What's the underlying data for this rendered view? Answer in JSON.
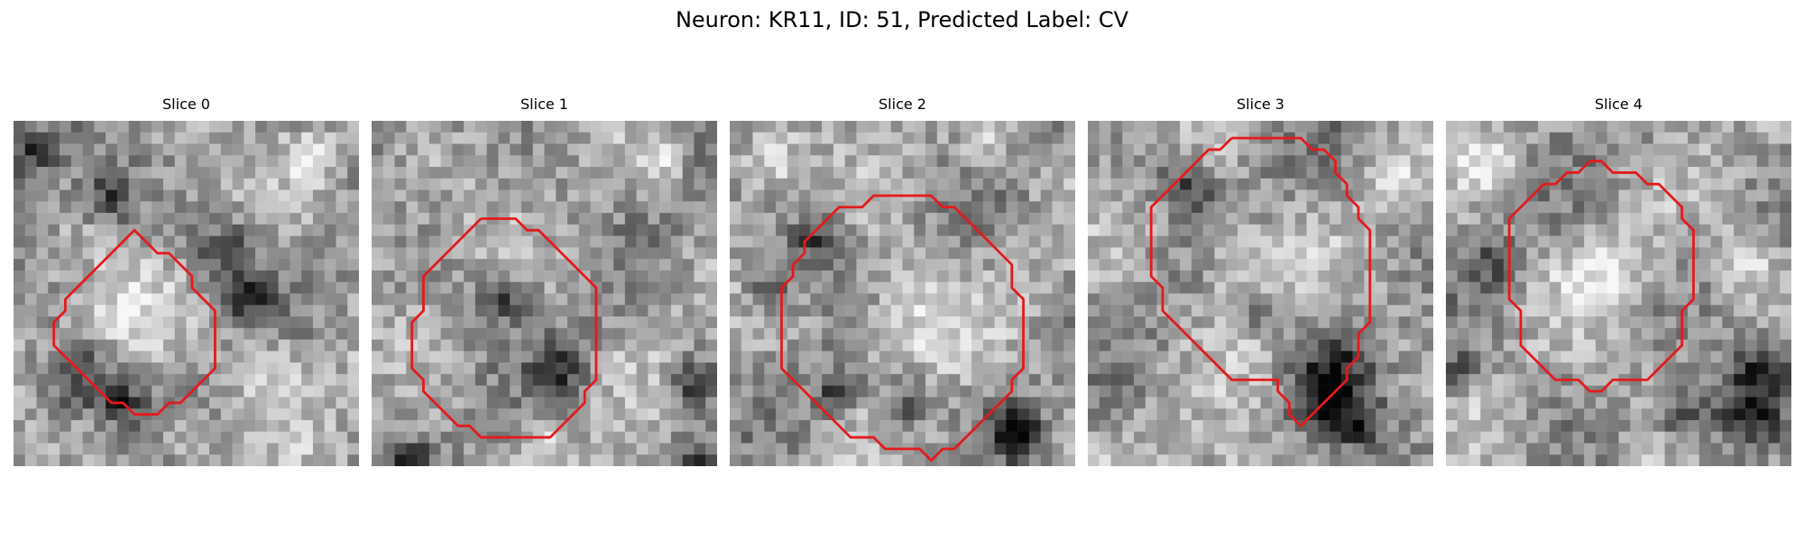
{
  "figure": {
    "title": "Neuron: KR11, ID: 51, Predicted Label: CV"
  },
  "colors": {
    "contour": "#e41a1c",
    "background": "#ffffff"
  },
  "panels": [
    {
      "title": "Slice 0",
      "contour": [
        [
          9.5,
          10.5
        ],
        [
          10.5,
          9.5
        ],
        [
          11.5,
          10.5
        ],
        [
          12.5,
          11.5
        ],
        [
          13.5,
          11.5
        ],
        [
          14.5,
          12.5
        ],
        [
          15.5,
          13.5
        ],
        [
          15.5,
          14.5
        ],
        [
          16.5,
          15.5
        ],
        [
          17.5,
          16.5
        ],
        [
          17.5,
          17.5
        ],
        [
          17.5,
          18.5
        ],
        [
          17.5,
          19.5
        ],
        [
          17.5,
          20.5
        ],
        [
          17.5,
          21.5
        ],
        [
          16.5,
          22.5
        ],
        [
          15.5,
          23.5
        ],
        [
          14.5,
          24.5
        ],
        [
          13.5,
          24.5
        ],
        [
          12.5,
          25.5
        ],
        [
          11.5,
          25.5
        ],
        [
          10.5,
          25.5
        ],
        [
          9.5,
          24.5
        ],
        [
          8.5,
          24.5
        ],
        [
          7.5,
          23.5
        ],
        [
          6.5,
          22.5
        ],
        [
          5.5,
          21.5
        ],
        [
          4.5,
          20.5
        ],
        [
          3.5,
          19.5
        ],
        [
          3.5,
          18.5
        ],
        [
          3.5,
          17.5
        ],
        [
          4.5,
          16.5
        ],
        [
          4.5,
          15.5
        ],
        [
          5.5,
          14.5
        ],
        [
          6.5,
          13.5
        ],
        [
          7.5,
          12.5
        ],
        [
          8.5,
          11.5
        ],
        [
          9.5,
          10.5
        ]
      ],
      "dark_spots": [
        [
          1.5,
          2.5,
          1.6
        ],
        [
          8.5,
          6.5,
          1.8
        ],
        [
          5.5,
          22.5,
          2.2
        ],
        [
          9.5,
          24.5,
          1.4
        ],
        [
          18.5,
          11.5,
          1.7
        ],
        [
          20.5,
          15.5,
          1.5
        ]
      ],
      "light_spots": [
        [
          9.5,
          16.5,
          2.8
        ],
        [
          22.5,
          21.5,
          2.4
        ],
        [
          15.5,
          27.5,
          1.8
        ],
        [
          25.5,
          3.5,
          1.6
        ]
      ]
    },
    {
      "title": "Slice 1",
      "contour": [
        [
          9.5,
          8.5
        ],
        [
          10.5,
          8.5
        ],
        [
          11.5,
          8.5
        ],
        [
          12.5,
          8.5
        ],
        [
          13.5,
          9.5
        ],
        [
          14.5,
          9.5
        ],
        [
          15.5,
          10.5
        ],
        [
          16.5,
          11.5
        ],
        [
          17.5,
          12.5
        ],
        [
          18.5,
          13.5
        ],
        [
          19.5,
          14.5
        ],
        [
          19.5,
          15.5
        ],
        [
          19.5,
          16.5
        ],
        [
          19.5,
          17.5
        ],
        [
          19.5,
          18.5
        ],
        [
          19.5,
          19.5
        ],
        [
          19.5,
          20.5
        ],
        [
          19.5,
          21.5
        ],
        [
          19.5,
          22.5
        ],
        [
          18.5,
          23.5
        ],
        [
          18.5,
          24.5
        ],
        [
          17.5,
          25.5
        ],
        [
          16.5,
          26.5
        ],
        [
          15.5,
          27.5
        ],
        [
          14.5,
          27.5
        ],
        [
          13.5,
          27.5
        ],
        [
          12.5,
          27.5
        ],
        [
          11.5,
          27.5
        ],
        [
          10.5,
          27.5
        ],
        [
          9.5,
          27.5
        ],
        [
          8.5,
          26.5
        ],
        [
          7.5,
          26.5
        ],
        [
          6.5,
          25.5
        ],
        [
          5.5,
          24.5
        ],
        [
          4.5,
          23.5
        ],
        [
          4.5,
          22.5
        ],
        [
          3.5,
          21.5
        ],
        [
          3.5,
          20.5
        ],
        [
          3.5,
          19.5
        ],
        [
          3.5,
          18.5
        ],
        [
          3.5,
          17.5
        ],
        [
          4.5,
          16.5
        ],
        [
          4.5,
          15.5
        ],
        [
          4.5,
          14.5
        ],
        [
          4.5,
          13.5
        ],
        [
          5.5,
          12.5
        ],
        [
          6.5,
          11.5
        ],
        [
          7.5,
          10.5
        ],
        [
          8.5,
          9.5
        ],
        [
          9.5,
          8.5
        ]
      ],
      "dark_spots": [
        [
          11.5,
          15.5,
          1.4
        ],
        [
          16.5,
          21.5,
          1.6
        ],
        [
          27.5,
          22.5,
          1.5
        ],
        [
          28.5,
          29.5,
          1.3
        ],
        [
          3.5,
          29.5,
          1.2
        ]
      ],
      "light_spots": [
        [
          14.5,
          27.5,
          0.8
        ],
        [
          25.5,
          3.5,
          1.2
        ]
      ]
    },
    {
      "title": "Slice 2",
      "contour": [
        [
          13.5,
          6.5
        ],
        [
          14.5,
          6.5
        ],
        [
          15.5,
          6.5
        ],
        [
          16.5,
          6.5
        ],
        [
          17.5,
          6.5
        ],
        [
          18.5,
          7.5
        ],
        [
          19.5,
          7.5
        ],
        [
          20.5,
          8.5
        ],
        [
          21.5,
          9.5
        ],
        [
          22.5,
          10.5
        ],
        [
          23.5,
          11.5
        ],
        [
          24.5,
          12.5
        ],
        [
          24.5,
          13.5
        ],
        [
          24.5,
          14.5
        ],
        [
          25.5,
          15.5
        ],
        [
          25.5,
          16.5
        ],
        [
          25.5,
          17.5
        ],
        [
          25.5,
          18.5
        ],
        [
          25.5,
          19.5
        ],
        [
          25.5,
          20.5
        ],
        [
          25.5,
          21.5
        ],
        [
          24.5,
          22.5
        ],
        [
          24.5,
          23.5
        ],
        [
          23.5,
          24.5
        ],
        [
          22.5,
          25.5
        ],
        [
          21.5,
          26.5
        ],
        [
          20.5,
          27.5
        ],
        [
          19.5,
          28.5
        ],
        [
          18.5,
          28.5
        ],
        [
          17.5,
          29.5
        ],
        [
          16.5,
          28.5
        ],
        [
          15.5,
          28.5
        ],
        [
          14.5,
          28.5
        ],
        [
          13.5,
          28.5
        ],
        [
          12.5,
          27.5
        ],
        [
          11.5,
          27.5
        ],
        [
          10.5,
          27.5
        ],
        [
          9.5,
          26.5
        ],
        [
          8.5,
          25.5
        ],
        [
          7.5,
          24.5
        ],
        [
          6.5,
          23.5
        ],
        [
          5.5,
          22.5
        ],
        [
          4.5,
          21.5
        ],
        [
          4.5,
          20.5
        ],
        [
          4.5,
          19.5
        ],
        [
          4.5,
          18.5
        ],
        [
          4.5,
          17.5
        ],
        [
          4.5,
          16.5
        ],
        [
          4.5,
          15.5
        ],
        [
          4.5,
          14.5
        ],
        [
          5.5,
          13.5
        ],
        [
          5.5,
          12.5
        ],
        [
          6.5,
          11.5
        ],
        [
          6.5,
          10.5
        ],
        [
          7.5,
          9.5
        ],
        [
          8.5,
          8.5
        ],
        [
          9.5,
          7.5
        ],
        [
          10.5,
          7.5
        ],
        [
          11.5,
          7.5
        ],
        [
          12.5,
          6.5
        ],
        [
          13.5,
          6.5
        ]
      ],
      "dark_spots": [
        [
          7.5,
          10.5,
          1.6
        ],
        [
          24.5,
          26.5,
          1.6
        ],
        [
          25.5,
          27.5,
          1.3
        ],
        [
          3.5,
          14.5,
          1.4
        ],
        [
          9.5,
          23.5,
          1.3
        ],
        [
          15.5,
          24.5,
          1.5
        ]
      ],
      "light_spots": [
        [
          15.5,
          16.5,
          3.4
        ],
        [
          3.5,
          3.5,
          1.8
        ],
        [
          22.5,
          2.5,
          1.6
        ]
      ]
    },
    {
      "title": "Slice 3",
      "contour": [
        [
          12.5,
          1.5
        ],
        [
          13.5,
          1.5
        ],
        [
          14.5,
          1.5
        ],
        [
          15.5,
          1.5
        ],
        [
          16.5,
          1.5
        ],
        [
          17.5,
          1.5
        ],
        [
          18.5,
          1.5
        ],
        [
          19.5,
          2.5
        ],
        [
          20.5,
          2.5
        ],
        [
          21.5,
          3.5
        ],
        [
          21.5,
          4.5
        ],
        [
          22.5,
          5.5
        ],
        [
          22.5,
          6.5
        ],
        [
          23.5,
          7.5
        ],
        [
          23.5,
          8.5
        ],
        [
          24.5,
          9.5
        ],
        [
          24.5,
          10.5
        ],
        [
          24.5,
          11.5
        ],
        [
          24.5,
          12.5
        ],
        [
          24.5,
          13.5
        ],
        [
          24.5,
          14.5
        ],
        [
          24.5,
          15.5
        ],
        [
          24.5,
          16.5
        ],
        [
          24.5,
          17.5
        ],
        [
          23.5,
          18.5
        ],
        [
          23.5,
          19.5
        ],
        [
          23.5,
          20.5
        ],
        [
          22.5,
          21.5
        ],
        [
          22.5,
          22.5
        ],
        [
          21.5,
          23.5
        ],
        [
          20.5,
          24.5
        ],
        [
          19.5,
          25.5
        ],
        [
          18.5,
          26.5
        ],
        [
          17.5,
          25.5
        ],
        [
          17.5,
          24.5
        ],
        [
          16.5,
          23.5
        ],
        [
          16.5,
          22.5
        ],
        [
          15.5,
          22.5
        ],
        [
          14.5,
          22.5
        ],
        [
          13.5,
          22.5
        ],
        [
          12.5,
          22.5
        ],
        [
          11.5,
          21.5
        ],
        [
          10.5,
          20.5
        ],
        [
          9.5,
          19.5
        ],
        [
          8.5,
          18.5
        ],
        [
          7.5,
          17.5
        ],
        [
          6.5,
          16.5
        ],
        [
          6.5,
          15.5
        ],
        [
          6.5,
          14.5
        ],
        [
          5.5,
          13.5
        ],
        [
          5.5,
          12.5
        ],
        [
          5.5,
          11.5
        ],
        [
          5.5,
          10.5
        ],
        [
          5.5,
          9.5
        ],
        [
          5.5,
          8.5
        ],
        [
          5.5,
          7.5
        ],
        [
          6.5,
          6.5
        ],
        [
          7.5,
          5.5
        ],
        [
          8.5,
          4.5
        ],
        [
          9.5,
          3.5
        ],
        [
          10.5,
          2.5
        ],
        [
          11.5,
          2.5
        ],
        [
          12.5,
          1.5
        ]
      ],
      "dark_spots": [
        [
          8.5,
          5.5,
          1.6
        ],
        [
          21.5,
          21.5,
          2.4
        ],
        [
          20.5,
          24.5,
          1.8
        ],
        [
          23.5,
          26.5,
          1.5
        ],
        [
          14.5,
          16.5,
          1.1
        ]
      ],
      "light_spots": [
        [
          13.5,
          12.5,
          2.8
        ],
        [
          12.5,
          28.5,
          1.3
        ],
        [
          26.5,
          5.5,
          1.4
        ]
      ]
    },
    {
      "title": "Slice 4",
      "contour": [
        [
          12.5,
          3.5
        ],
        [
          13.5,
          3.5
        ],
        [
          14.5,
          4.5
        ],
        [
          15.5,
          4.5
        ],
        [
          16.5,
          4.5
        ],
        [
          17.5,
          5.5
        ],
        [
          18.5,
          5.5
        ],
        [
          19.5,
          6.5
        ],
        [
          20.5,
          7.5
        ],
        [
          20.5,
          8.5
        ],
        [
          21.5,
          9.5
        ],
        [
          21.5,
          10.5
        ],
        [
          21.5,
          11.5
        ],
        [
          21.5,
          12.5
        ],
        [
          21.5,
          13.5
        ],
        [
          21.5,
          14.5
        ],
        [
          21.5,
          15.5
        ],
        [
          20.5,
          16.5
        ],
        [
          20.5,
          17.5
        ],
        [
          20.5,
          18.5
        ],
        [
          20.5,
          19.5
        ],
        [
          19.5,
          20.5
        ],
        [
          18.5,
          21.5
        ],
        [
          17.5,
          22.5
        ],
        [
          16.5,
          22.5
        ],
        [
          15.5,
          22.5
        ],
        [
          14.5,
          22.5
        ],
        [
          13.5,
          23.5
        ],
        [
          12.5,
          23.5
        ],
        [
          11.5,
          22.5
        ],
        [
          10.5,
          22.5
        ],
        [
          9.5,
          22.5
        ],
        [
          8.5,
          21.5
        ],
        [
          7.5,
          20.5
        ],
        [
          6.5,
          19.5
        ],
        [
          6.5,
          18.5
        ],
        [
          6.5,
          17.5
        ],
        [
          6.5,
          16.5
        ],
        [
          5.5,
          15.5
        ],
        [
          5.5,
          14.5
        ],
        [
          5.5,
          13.5
        ],
        [
          5.5,
          12.5
        ],
        [
          5.5,
          11.5
        ],
        [
          5.5,
          10.5
        ],
        [
          5.5,
          9.5
        ],
        [
          5.5,
          8.5
        ],
        [
          6.5,
          7.5
        ],
        [
          7.5,
          6.5
        ],
        [
          8.5,
          5.5
        ],
        [
          9.5,
          5.5
        ],
        [
          10.5,
          4.5
        ],
        [
          11.5,
          4.5
        ],
        [
          12.5,
          3.5
        ]
      ],
      "dark_spots": [
        [
          26.5,
          25.5,
          2.4
        ],
        [
          27.5,
          21.5,
          1.6
        ],
        [
          1.5,
          21.5,
          1.3
        ],
        [
          20.5,
          25.5,
          1.2
        ],
        [
          4.5,
          12.5,
          1.1
        ]
      ],
      "light_spots": [
        [
          13.5,
          13.5,
          2.6
        ],
        [
          3.5,
          3.5,
          1.8
        ],
        [
          26.5,
          12.5,
          1.5
        ],
        [
          17.5,
          29.5,
          1.2
        ]
      ]
    }
  ]
}
